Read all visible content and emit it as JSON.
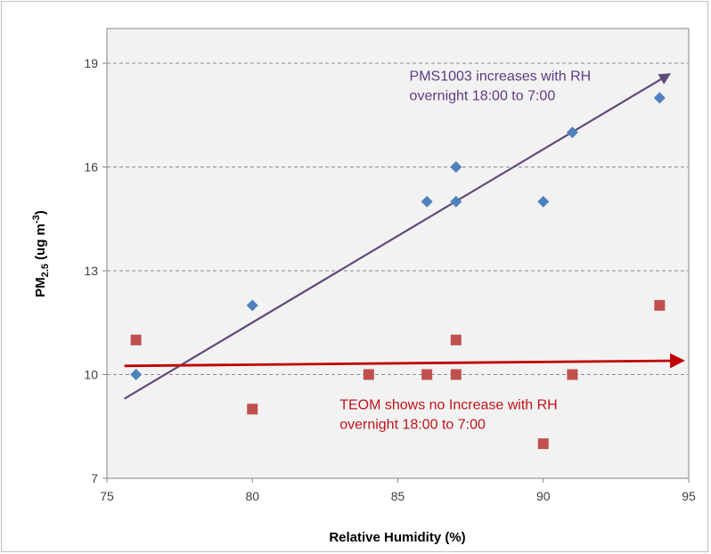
{
  "chart_data": {
    "type": "scatter",
    "xlabel": "Relative Humidity (%)",
    "ylabel": {
      "base": "PM",
      "sub": "2.5",
      "unit": " (ug m",
      "sup": "-3",
      "close": ")"
    },
    "xlim": [
      75,
      95
    ],
    "ylim": [
      7,
      20
    ],
    "x_ticks": [
      "75",
      "80",
      "85",
      "90",
      "95"
    ],
    "y_ticks": [
      "7",
      "10",
      "13",
      "16",
      "19"
    ],
    "grid": "horizontal dashed",
    "plot_background": "#f2f2f2",
    "series": [
      {
        "marker": "diamond",
        "color": "#4f81bd",
        "points": [
          [
            76,
            10
          ],
          [
            80,
            12
          ],
          [
            86,
            15
          ],
          [
            87,
            16
          ],
          [
            87,
            15
          ],
          [
            90,
            15
          ],
          [
            91,
            17
          ],
          [
            94,
            18
          ]
        ]
      },
      {
        "marker": "square",
        "color": "#c0504d",
        "points": [
          [
            76,
            11
          ],
          [
            80,
            9
          ],
          [
            84,
            10
          ],
          [
            86,
            10
          ],
          [
            87,
            11
          ],
          [
            87,
            10
          ],
          [
            90,
            8
          ],
          [
            91,
            10
          ],
          [
            94,
            12
          ]
        ]
      }
    ],
    "trend_arrows": [
      {
        "color": "#604a7b",
        "from": [
          75.6,
          9.3
        ],
        "to": [
          94.4,
          18.7
        ]
      },
      {
        "color": "#c00000",
        "from": [
          75.6,
          10.25
        ],
        "to": [
          94.8,
          10.4
        ]
      }
    ],
    "annotations": [
      {
        "lines": [
          "PMS1003  increases with RH",
          "overnight 18:00 to 7:00"
        ],
        "color": "#5a3d84",
        "at": [
          85.4,
          18.5
        ]
      },
      {
        "lines": [
          "TEOM shows no Increase with RH",
          "overnight 18:00 to 7:00"
        ],
        "color": "#c0141a",
        "at": [
          83.0,
          9.0
        ]
      }
    ]
  }
}
